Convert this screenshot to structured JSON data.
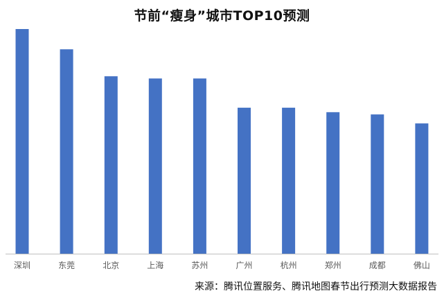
{
  "title": "节前“瘦身”城市TOP10预测",
  "source": "来源：腾讯位置服务、腾讯地图春节出行预测大数据报告",
  "colors": {
    "bar": "#4472c4",
    "axis": "#bfbfbf",
    "tick_label": "#595959"
  },
  "chart_data": {
    "type": "bar",
    "title": "节前“瘦身”城市TOP10预测",
    "categories": [
      "深圳",
      "东莞",
      "北京",
      "上海",
      "苏州",
      "广州",
      "杭州",
      "郑州",
      "成都",
      "佛山"
    ],
    "series": [
      {
        "values": [
          100,
          91,
          79,
          78,
          78,
          65,
          65,
          63,
          62,
          58
        ]
      }
    ],
    "xlabel": "",
    "ylabel": "",
    "ylim": [
      0,
      100
    ],
    "y_axis_visible": false,
    "grid": false,
    "legend": "none"
  }
}
